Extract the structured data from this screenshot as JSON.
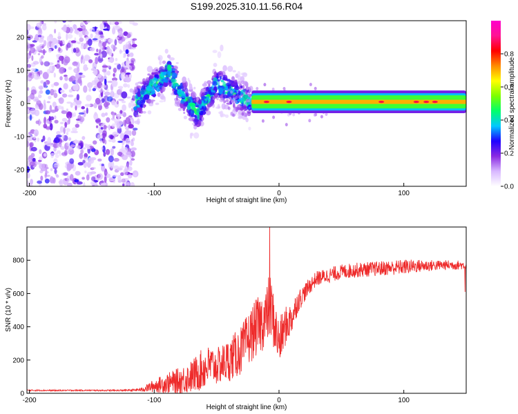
{
  "chart_data": [
    {
      "type": "heatmap",
      "title": "S199.2025.310.11.56.R04",
      "xlabel": "Height of straight line (km)",
      "ylabel": "Frequency (Hz)",
      "xlim": [
        -202,
        150
      ],
      "ylim": [
        -25,
        25
      ],
      "x_ticks": [
        -200,
        -100,
        0,
        100
      ],
      "y_ticks": [
        -20,
        -10,
        0,
        10,
        20
      ],
      "colorbar": {
        "label": "Normalized spectral amplitude",
        "range": [
          0.0,
          1.0
        ],
        "ticks": [
          "0.0",
          "0.2",
          "0.4",
          "0.6",
          "0.8"
        ],
        "tick_values": [
          0.0,
          0.2,
          0.4,
          0.6,
          0.8
        ],
        "colors": [
          "#ffffff",
          "#d8b8ff",
          "#8a2be2",
          "#1e00ff",
          "#00c8ff",
          "#00ff6a",
          "#7cff00",
          "#ffff00",
          "#ff8c00",
          "#ff0000",
          "#ff1493",
          "#ff00cc"
        ]
      },
      "regions": [
        {
          "name": "noise",
          "x_range": [
            -202,
            -115
          ],
          "freq_range": [
            -25,
            25
          ],
          "amplitude": 0.1
        },
        {
          "name": "transition",
          "x_range": [
            -115,
            -22
          ],
          "freq_center": [
            [
              -115,
              0
            ],
            [
              -88,
              10
            ],
            [
              -80,
              4
            ],
            [
              -65,
              -3
            ],
            [
              -50,
              6
            ],
            [
              -30,
              2
            ],
            [
              -22,
              0
            ]
          ],
          "amplitude": 0.3
        },
        {
          "name": "carrier",
          "x_range": [
            -22,
            150
          ],
          "freq_center": 0.5,
          "half_width_hz": 1.8,
          "amplitude": 0.7,
          "peaks_x": [
            -10,
            8,
            82,
            110,
            118,
            125
          ]
        }
      ]
    },
    {
      "type": "line",
      "xlabel": "Height of straight line (km)",
      "ylabel": "SNR (10 * v/v)",
      "xlim": [
        -202,
        150
      ],
      "ylim": [
        0,
        1000
      ],
      "x_ticks": [
        -200,
        -100,
        0,
        100
      ],
      "y_ticks": [
        0,
        200,
        400,
        600,
        800
      ],
      "color": "#ee2b2b",
      "series": [
        {
          "name": "SNR",
          "x": [
            -202,
            -180,
            -160,
            -140,
            -120,
            -110,
            -100,
            -90,
            -80,
            -70,
            -60,
            -55,
            -50,
            -40,
            -30,
            -25,
            -20,
            -15,
            -10,
            -8,
            -6,
            -4,
            0,
            5,
            10,
            15,
            20,
            25,
            30,
            40,
            50,
            60,
            70,
            80,
            90,
            100,
            110,
            120,
            130,
            140,
            150
          ],
          "values": [
            18,
            17,
            18,
            17,
            18,
            22,
            45,
            60,
            75,
            100,
            150,
            170,
            160,
            200,
            260,
            320,
            380,
            420,
            460,
            520,
            500,
            420,
            300,
            400,
            450,
            550,
            600,
            650,
            690,
            710,
            730,
            740,
            745,
            750,
            755,
            760,
            765,
            768,
            770,
            772,
            770
          ],
          "noise_amplitude": [
            4,
            4,
            4,
            4,
            5,
            12,
            40,
            60,
            80,
            100,
            130,
            120,
            110,
            130,
            150,
            160,
            170,
            180,
            180,
            200,
            200,
            160,
            150,
            120,
            100,
            70,
            55,
            50,
            45,
            45,
            45,
            45,
            45,
            45,
            45,
            45,
            40,
            35,
            30,
            30,
            25
          ],
          "spikes": [
            {
              "x": -7.5,
              "y": 1010
            },
            {
              "x": 149,
              "y": 610
            }
          ]
        }
      ]
    }
  ]
}
